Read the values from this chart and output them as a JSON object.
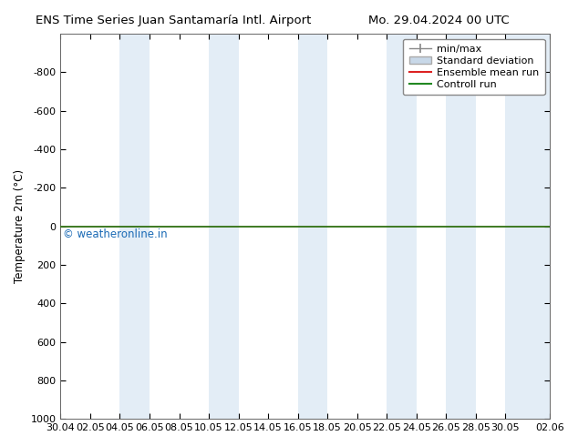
{
  "title_left": "ENS Time Series Juan Santamaría Intl. Airport",
  "title_right": "Mo. 29.04.2024 00 UTC",
  "ylabel": "Temperature 2m (°C)",
  "ylim_top": -1000,
  "ylim_bottom": 1000,
  "yticks": [
    -800,
    -600,
    -400,
    -200,
    0,
    200,
    400,
    600,
    800,
    1000
  ],
  "x_tick_labels": [
    "30.04",
    "02.05",
    "04.05",
    "06.05",
    "08.05",
    "10.05",
    "12.05",
    "14.05",
    "16.05",
    "18.05",
    "20.05",
    "22.05",
    "24.05",
    "26.05",
    "28.05",
    "30.05",
    "02.06"
  ],
  "x_tick_positions": [
    0,
    2,
    4,
    6,
    8,
    10,
    12,
    14,
    16,
    18,
    20,
    22,
    24,
    26,
    28,
    30,
    33
  ],
  "shade_bands": [
    [
      4,
      6
    ],
    [
      10,
      12
    ],
    [
      16,
      18
    ],
    [
      22,
      24
    ],
    [
      26,
      28
    ],
    [
      30,
      33
    ]
  ],
  "control_run_y": 0,
  "ensemble_mean_y": 0,
  "watermark": "© weatheronline.in",
  "watermark_color": "#1a6ab5",
  "background_color": "#ffffff",
  "plot_bg_color": "#ffffff",
  "band_color": "#ccdff0",
  "band_alpha": 0.55,
  "minmax_color": "#888888",
  "stddev_color": "#c8d8e8",
  "stddev_edge_color": "#aaaaaa",
  "ensemble_mean_color": "#dd2222",
  "control_run_color": "#228822",
  "title_fontsize": 9.5,
  "axis_fontsize": 8.5,
  "tick_fontsize": 8,
  "legend_fontsize": 8,
  "watermark_fontsize": 8.5,
  "xlim": [
    0,
    33
  ]
}
